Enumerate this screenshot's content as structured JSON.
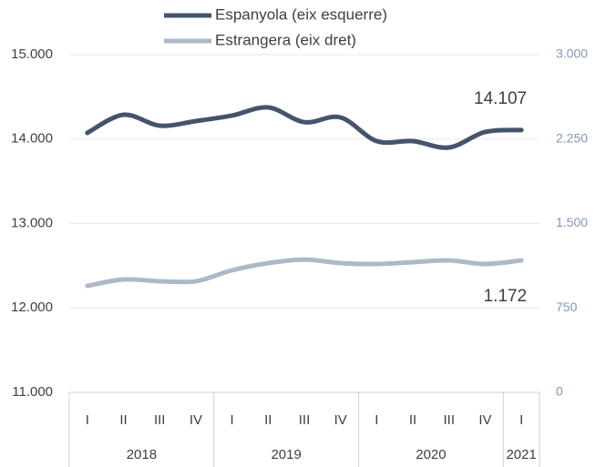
{
  "chart_data": {
    "type": "line",
    "categories": [
      "I",
      "II",
      "III",
      "IV",
      "I",
      "II",
      "III",
      "IV",
      "I",
      "II",
      "III",
      "IV",
      "I"
    ],
    "x_groups": [
      {
        "label": "2018",
        "count": 4
      },
      {
        "label": "2019",
        "count": 4
      },
      {
        "label": "2020",
        "count": 4
      },
      {
        "label": "2021",
        "count": 1
      }
    ],
    "series": [
      {
        "name": "Espanyola (eix esquerre)",
        "color": "#44546a",
        "axis": "y",
        "values": [
          14073,
          14288,
          14159,
          14213,
          14278,
          14375,
          14200,
          14256,
          13976,
          13976,
          13900,
          14084,
          14107
        ],
        "value_labels": [
          null,
          null,
          null,
          null,
          null,
          null,
          null,
          null,
          null,
          null,
          null,
          null,
          "14.107"
        ]
      },
      {
        "name": "Estrangera (eix dret)",
        "color": "#adb9ca",
        "axis": "y2",
        "values": [
          946,
          1003,
          987,
          987,
          1084,
          1148,
          1180,
          1148,
          1140,
          1156,
          1172,
          1140,
          1172
        ],
        "value_labels": [
          null,
          null,
          null,
          null,
          null,
          null,
          null,
          null,
          null,
          null,
          null,
          null,
          "1.172"
        ]
      }
    ],
    "ylim": [
      11000,
      15000
    ],
    "yticks": [
      {
        "value": 11000,
        "label": "11.000"
      },
      {
        "value": 12000,
        "label": "12.000"
      },
      {
        "value": 13000,
        "label": "13.000"
      },
      {
        "value": 14000,
        "label": "14.000"
      },
      {
        "value": 15000,
        "label": "15.000"
      }
    ],
    "y2lim": [
      0,
      3000
    ],
    "y2ticks": [
      0,
      750,
      {
        "value": 1500,
        "label": "1.500"
      },
      {
        "value": 2250,
        "label": "2.250"
      },
      {
        "value": 3000,
        "label": "3.000"
      }
    ],
    "grid": true,
    "legend": "upper center"
  }
}
